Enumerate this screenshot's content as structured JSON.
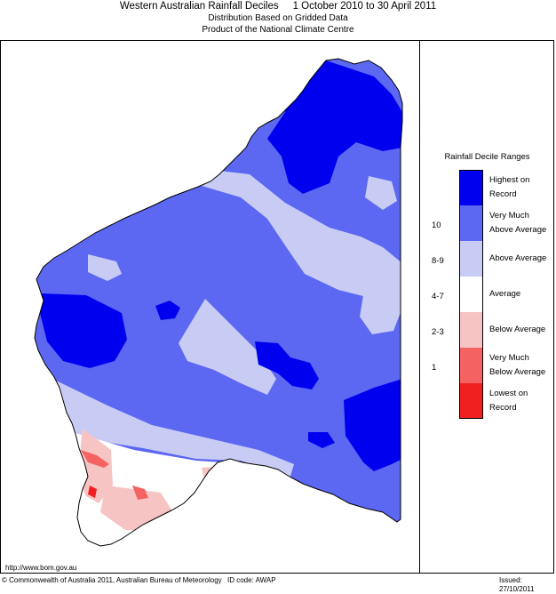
{
  "header": {
    "title": "Western Australian Rainfall Deciles     1 October 2010 to 30 April 2011",
    "subtitle_1": "Distribution Based on Gridded Data",
    "subtitle_2": "Product of the National Climate Centre"
  },
  "legend": {
    "title": "Rainfall Decile Ranges",
    "entries": [
      {
        "label": "Highest on Record",
        "color": "#0000ee"
      },
      {
        "label": "Very Much Above Average",
        "color": "#5c67f2"
      },
      {
        "label": "Above Average",
        "color": "#c8ccf4"
      },
      {
        "label": "Average",
        "color": "#ffffff"
      },
      {
        "label": "Below Average",
        "color": "#f7c4c4"
      },
      {
        "label": "Very Much Below Average",
        "color": "#f46262"
      },
      {
        "label": "Lowest on Record",
        "color": "#f02020"
      }
    ],
    "ranges": [
      "10",
      "8-9",
      "4-7",
      "2-3",
      "1"
    ]
  },
  "footer": {
    "url": "http://www.bom.gov.au",
    "copyright": "© Commonwealth of Australia 2011, Australian Bureau of Meteorology",
    "id_code": "ID code: AWAP",
    "issued": "Issued: 27/10/2011"
  }
}
